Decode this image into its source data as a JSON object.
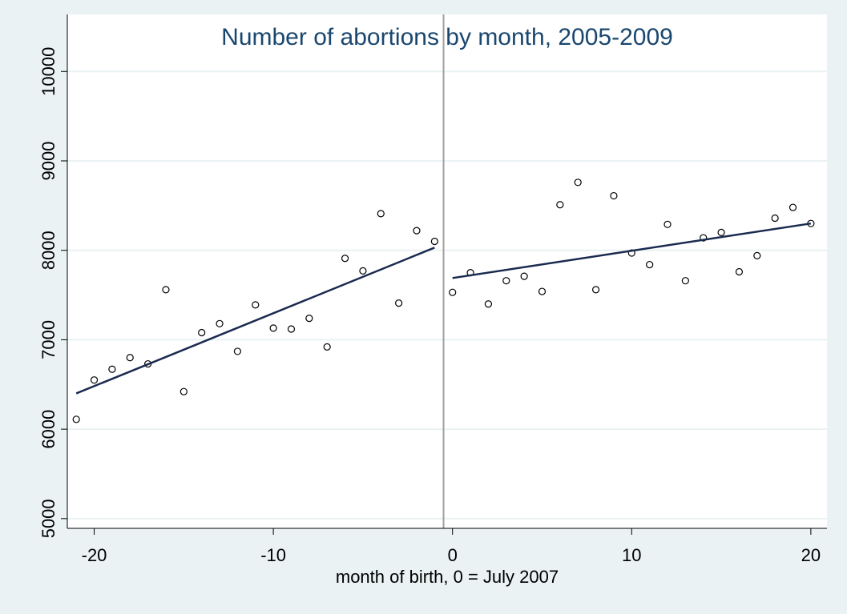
{
  "chart_data": {
    "type": "scatter",
    "title": "Number of abortions by month, 2005-2009",
    "x_label": "month of birth, 0 = July 2007",
    "xlim": [
      -21.5,
      20.9
    ],
    "ylim": [
      4900,
      10450
    ],
    "xticks": [
      -20,
      -10,
      0,
      10,
      20
    ],
    "yticks": [
      5000,
      6000,
      7000,
      8000,
      9000,
      10000
    ],
    "grid": true,
    "reference_line_x": -0.5,
    "series": [
      {
        "type": "scatter",
        "color": "#000000",
        "x": [
          -21,
          -20,
          -19,
          -18,
          -17,
          -16,
          -15,
          -14,
          -13,
          -12,
          -11,
          -10,
          -9,
          -8,
          -7,
          -6,
          -5,
          -4,
          -3,
          -2,
          -1,
          0,
          1,
          2,
          3,
          4,
          5,
          6,
          7,
          8,
          9,
          10,
          11,
          12,
          13,
          14,
          15,
          16,
          17,
          18,
          19,
          20
        ],
        "values": [
          6110,
          6550,
          6670,
          6800,
          6730,
          7560,
          6420,
          7080,
          7180,
          6870,
          7390,
          7130,
          7120,
          7240,
          6920,
          7910,
          7770,
          8410,
          7410,
          8220,
          8100,
          7530,
          7750,
          7400,
          7660,
          7710,
          7540,
          8510,
          8760,
          7560,
          8610,
          7970,
          7840,
          8290,
          7660,
          8140,
          8200,
          7760,
          7940,
          8360,
          8480,
          8300
        ]
      },
      {
        "type": "line",
        "color": "#1a2a4f",
        "x": [
          -21,
          -1
        ],
        "values": [
          6400,
          8030
        ]
      },
      {
        "type": "line",
        "color": "#1a2a4f",
        "x": [
          0,
          20
        ],
        "values": [
          7690,
          8300
        ]
      }
    ]
  }
}
